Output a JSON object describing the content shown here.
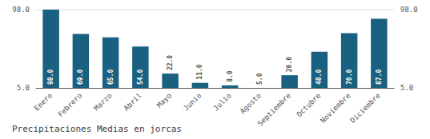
{
  "chart_data": {
    "type": "bar",
    "title": "Precipitaciones Medias en jorcas",
    "categories": [
      "Enero",
      "Febrero",
      "Marzo",
      "Abril",
      "Mayo",
      "Junio",
      "Julio",
      "Agosto",
      "Septiembre",
      "Octubre",
      "Noviembre",
      "Diciembre"
    ],
    "values": [
      98.0,
      69.0,
      65.0,
      54.0,
      22.0,
      11.0,
      8.0,
      5.0,
      20.0,
      48.0,
      70.0,
      87.0
    ],
    "value_labels": [
      "98.0",
      "69.0",
      "65.0",
      "54.0",
      "22.0",
      "11.0",
      "8.0",
      "5.0",
      "20.0",
      "48.0",
      "70.0",
      "87.0"
    ],
    "color": "#1a6080",
    "ylim": [
      5.0,
      98.0
    ],
    "yticks": [
      {
        "value": 5.0,
        "label": "5.0"
      },
      {
        "value": 98.0,
        "label": "98.0"
      }
    ],
    "grid": true,
    "data_labels": true
  }
}
